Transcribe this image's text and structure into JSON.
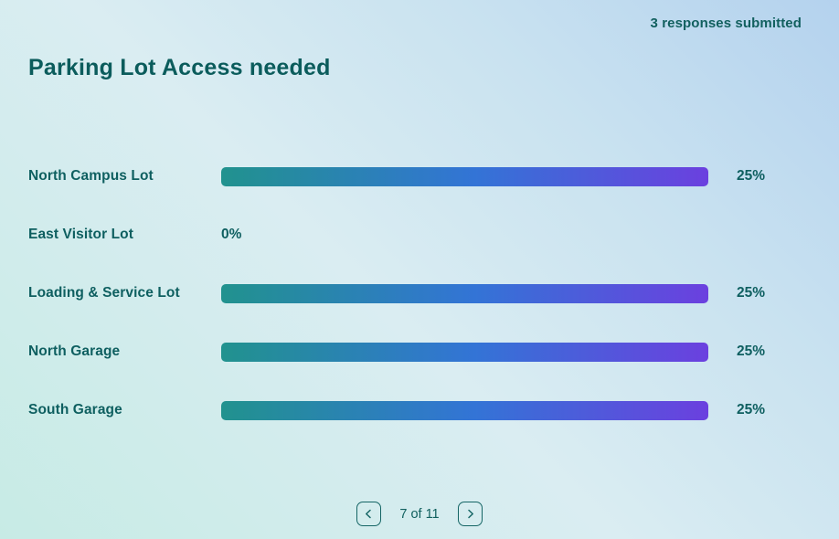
{
  "header": {
    "responses_label": "3 responses submitted",
    "title": "Parking Lot Access needed"
  },
  "chart_data": {
    "type": "bar",
    "orientation": "horizontal",
    "title": "Parking Lot Access needed",
    "categories": [
      "North Campus Lot",
      "East Visitor Lot",
      "Loading & Service Lot",
      "North Garage",
      "South Garage"
    ],
    "values": [
      25,
      0,
      25,
      25,
      25
    ],
    "value_labels": [
      "25%",
      "0%",
      "25%",
      "25%",
      "25%"
    ],
    "max_value": 25,
    "bar_gradient": [
      "#21928e",
      "#3374d6",
      "#6b40df"
    ],
    "label_color": "#0e5f60",
    "grid": false,
    "legend": false
  },
  "pagination": {
    "label": "7 of 11"
  },
  "colors": {
    "title_text": "#0b5c5c",
    "teal_text": "#0e5f60",
    "pagination_accent": "#156565",
    "background_top_right": "#b4d2ee",
    "background_middle": "#daedf2",
    "background_bottom_left": "#c7ebe5"
  }
}
